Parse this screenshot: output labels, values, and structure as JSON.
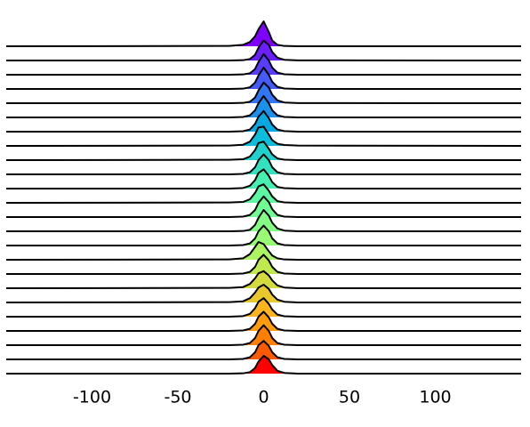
{
  "chart_data": {
    "type": "ridgeline",
    "x": [
      -150,
      -20,
      -12,
      -8,
      -5,
      -3,
      0,
      3,
      5,
      8,
      12,
      20,
      150
    ],
    "xlim": [
      -150,
      150
    ],
    "xticks": [
      -100,
      -50,
      0,
      50,
      100
    ],
    "series": [
      {
        "color": "#8000ff",
        "values": [
          0,
          0.02,
          0.1,
          0.3,
          0.7,
          1.2,
          1.75,
          1.0,
          0.4,
          0.1,
          0.02,
          0,
          0
        ]
      },
      {
        "color": "#6c1ffe",
        "values": [
          0,
          0,
          0.02,
          0.1,
          0.4,
          0.9,
          1.4,
          1.1,
          0.6,
          0.2,
          0.05,
          0.01,
          0
        ]
      },
      {
        "color": "#583efc",
        "values": [
          0,
          0,
          0.02,
          0.1,
          0.4,
          0.9,
          1.45,
          1.0,
          0.5,
          0.15,
          0.03,
          0,
          0
        ]
      },
      {
        "color": "#445bf9",
        "values": [
          0,
          0,
          0.02,
          0.12,
          0.45,
          0.95,
          1.5,
          1.0,
          0.5,
          0.15,
          0.03,
          0,
          0
        ]
      },
      {
        "color": "#3077f3",
        "values": [
          0,
          0,
          0.02,
          0.1,
          0.4,
          0.9,
          1.45,
          1.1,
          0.6,
          0.2,
          0.05,
          0.01,
          0
        ]
      },
      {
        "color": "#1c91ec",
        "values": [
          0,
          0,
          0.03,
          0.15,
          0.5,
          1.0,
          1.5,
          1.0,
          0.5,
          0.15,
          0.03,
          0,
          0
        ]
      },
      {
        "color": "#08a9e3",
        "values": [
          0,
          0,
          0.03,
          0.15,
          0.55,
          1.05,
          1.45,
          0.95,
          0.5,
          0.15,
          0.04,
          0,
          0
        ]
      },
      {
        "color": "#0cbed9",
        "values": [
          0,
          0.02,
          0.08,
          0.3,
          0.8,
          1.3,
          1.35,
          0.8,
          0.4,
          0.15,
          0.06,
          0.02,
          0
        ]
      },
      {
        "color": "#20d2cd",
        "values": [
          0,
          0.02,
          0.06,
          0.25,
          0.7,
          1.2,
          1.3,
          0.8,
          0.4,
          0.12,
          0.03,
          0,
          0
        ]
      },
      {
        "color": "#34e2c0",
        "values": [
          0,
          0,
          0.03,
          0.15,
          0.5,
          1.0,
          1.4,
          1.0,
          0.5,
          0.15,
          0.03,
          0,
          0
        ]
      },
      {
        "color": "#48efb2",
        "values": [
          0,
          0,
          0.04,
          0.2,
          0.6,
          1.1,
          1.35,
          0.9,
          0.45,
          0.12,
          0.03,
          0,
          0
        ]
      },
      {
        "color": "#5cf8a3",
        "values": [
          0,
          0.02,
          0.06,
          0.25,
          0.7,
          1.15,
          1.3,
          0.85,
          0.45,
          0.12,
          0.03,
          0,
          0
        ]
      },
      {
        "color": "#70fe94",
        "values": [
          0,
          0,
          0.03,
          0.15,
          0.5,
          1.0,
          1.45,
          1.05,
          0.55,
          0.15,
          0.03,
          0,
          0
        ]
      },
      {
        "color": "#84fe83",
        "values": [
          0,
          0,
          0.02,
          0.1,
          0.45,
          0.95,
          1.5,
          1.1,
          0.6,
          0.2,
          0.05,
          0,
          0
        ]
      },
      {
        "color": "#98fb73",
        "values": [
          0,
          0,
          0.03,
          0.15,
          0.5,
          1.0,
          1.4,
          1.0,
          0.5,
          0.15,
          0.03,
          0,
          0
        ]
      },
      {
        "color": "#acf462",
        "values": [
          0,
          0.02,
          0.1,
          0.4,
          0.9,
          1.25,
          1.1,
          0.6,
          0.3,
          0.1,
          0.02,
          0,
          0
        ]
      },
      {
        "color": "#c0e950",
        "values": [
          0,
          0,
          0.03,
          0.15,
          0.5,
          1.0,
          1.35,
          0.95,
          0.5,
          0.15,
          0.03,
          0,
          0
        ]
      },
      {
        "color": "#d4db3f",
        "values": [
          0,
          0.02,
          0.08,
          0.3,
          0.7,
          1.05,
          1.2,
          0.9,
          0.55,
          0.2,
          0.05,
          0,
          0
        ]
      },
      {
        "color": "#e8c92d",
        "values": [
          0,
          0.02,
          0.08,
          0.3,
          0.7,
          1.05,
          1.25,
          0.95,
          0.55,
          0.2,
          0.05,
          0,
          0
        ]
      },
      {
        "color": "#fcb51c",
        "values": [
          0,
          0,
          0.04,
          0.2,
          0.6,
          1.05,
          1.3,
          0.9,
          0.5,
          0.15,
          0.03,
          0,
          0
        ]
      },
      {
        "color": "#ff9c0c",
        "values": [
          0,
          0,
          0.03,
          0.15,
          0.5,
          1.0,
          1.35,
          0.95,
          0.5,
          0.15,
          0.03,
          0,
          0
        ]
      },
      {
        "color": "#ff7f00",
        "values": [
          0,
          0,
          0.03,
          0.15,
          0.5,
          1.0,
          1.4,
          1.0,
          0.5,
          0.15,
          0.03,
          0,
          0
        ]
      },
      {
        "color": "#ff5a00",
        "values": [
          0,
          0,
          0.03,
          0.15,
          0.5,
          1.0,
          1.3,
          0.95,
          0.5,
          0.15,
          0.03,
          0,
          0
        ]
      },
      {
        "color": "#ff0000",
        "values": [
          0,
          0,
          0.02,
          0.1,
          0.4,
          0.85,
          1.25,
          1.0,
          0.6,
          0.2,
          0.05,
          0,
          0
        ]
      }
    ]
  }
}
